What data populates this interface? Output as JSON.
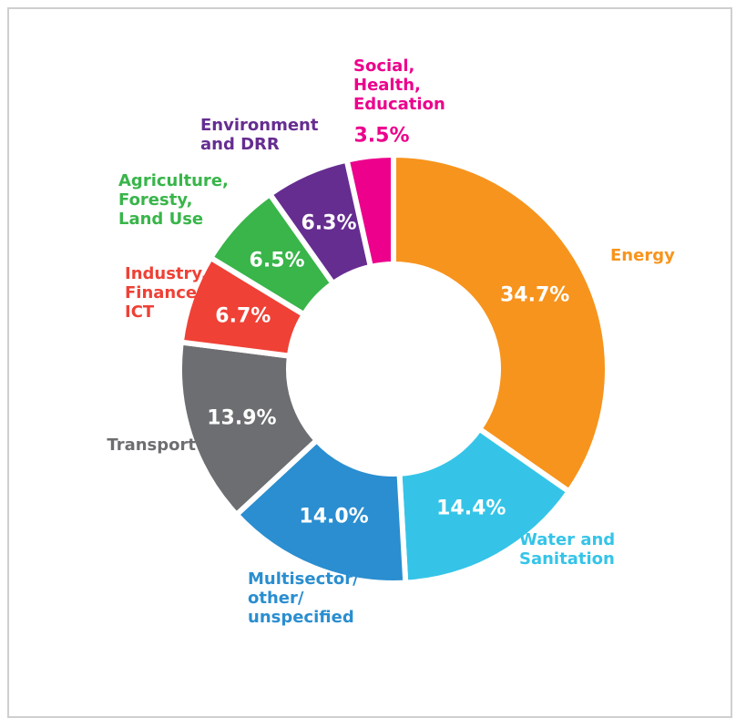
{
  "chart_data": {
    "type": "donut",
    "categories": [
      "Energy",
      "Water and\nSanitation",
      "Multisector/\nother/\nunspecified",
      "Transport",
      "Industry,\nFinance,\nICT",
      "Agriculture,\nForesty,\nLand Use",
      "Environment\nand DRR",
      "Social,\nHealth,\nEducation"
    ],
    "values": [
      34.7,
      14.4,
      14.0,
      13.9,
      6.7,
      6.5,
      6.3,
      3.5
    ],
    "value_labels": [
      "34.7%",
      "14.4%",
      "14.0%",
      "13.9%",
      "6.7%",
      "6.5%",
      "6.3%",
      "3.5%"
    ],
    "colors": [
      "#f7941d",
      "#35c4e8",
      "#2a8ed0",
      "#6d6e71",
      "#ef4136",
      "#39b54a",
      "#662d91",
      "#ec008c"
    ]
  }
}
